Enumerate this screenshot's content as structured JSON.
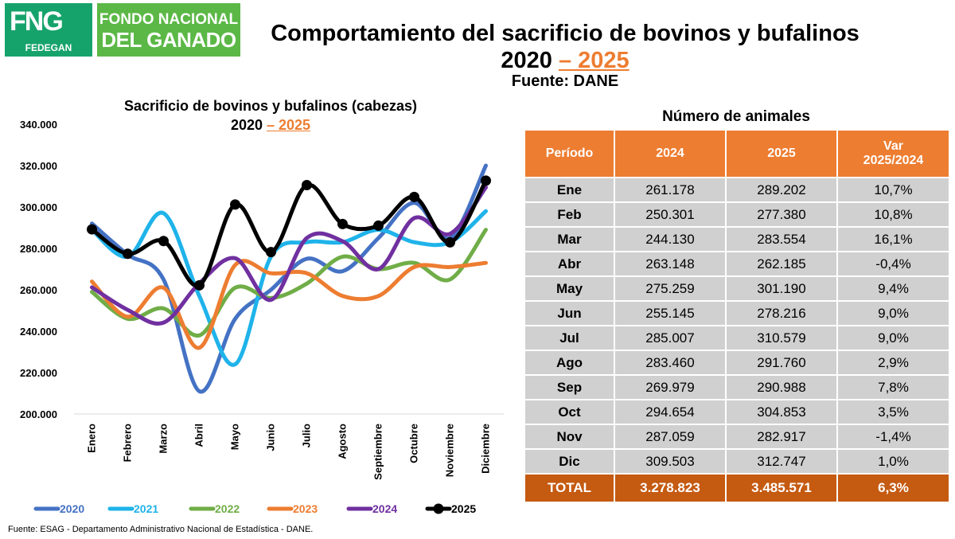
{
  "header": {
    "logo_fng": "FNG",
    "logo_fedegan": "FEDEGAN",
    "logo_line1": "FONDO NACIONAL",
    "logo_line2": "DEL GANADO",
    "title": "Comportamiento del sacrificio de bovinos y bufalinos",
    "years_black": "2020 ",
    "years_orange": "– 2025",
    "source": "Fuente: DANE"
  },
  "chart_data": {
    "type": "line",
    "title_line1": "Sacrificio de bovinos y bufalinos (cabezas)",
    "title_years_black": "2020 ",
    "title_years_orange": "– 2025",
    "categories": [
      "Enero",
      "Febrero",
      "Marzo",
      "Abril",
      "Mayo",
      "Junio",
      "Julio",
      "Agosto",
      "Septiembre",
      "Octubre",
      "Noviembre",
      "Diciembre"
    ],
    "ylim": [
      200000,
      340000
    ],
    "yticks": [
      "200.000",
      "220.000",
      "240.000",
      "260.000",
      "280.000",
      "300.000",
      "320.000",
      "340.000"
    ],
    "series": [
      {
        "name": "2020",
        "color": "#4472c4",
        "values": [
          292000,
          277000,
          265000,
          211000,
          246000,
          260000,
          275000,
          269000,
          285000,
          302000,
          285000,
          320000
        ]
      },
      {
        "name": "2021",
        "color": "#1fb3ea",
        "values": [
          289000,
          276000,
          297000,
          257000,
          224000,
          276000,
          283000,
          283000,
          289000,
          283000,
          283000,
          298000
        ]
      },
      {
        "name": "2022",
        "color": "#70ad47",
        "values": [
          259000,
          246000,
          251000,
          238000,
          261000,
          256000,
          263000,
          276000,
          270000,
          273000,
          265000,
          289000
        ]
      },
      {
        "name": "2023",
        "color": "#ed7d31",
        "values": [
          264000,
          247000,
          261000,
          232000,
          272000,
          268000,
          268000,
          257000,
          257000,
          271000,
          271000,
          273000
        ]
      },
      {
        "name": "2024",
        "color": "#7030a0",
        "values": [
          261178,
          250301,
          244130,
          263148,
          275259,
          255145,
          285007,
          283460,
          269979,
          294654,
          287059,
          309503
        ]
      },
      {
        "name": "2025",
        "color": "#000000",
        "values": [
          289202,
          277380,
          283554,
          262185,
          301190,
          278216,
          310579,
          291760,
          290988,
          304853,
          282917,
          312747
        ]
      }
    ]
  },
  "table": {
    "caption": "Número de animales",
    "headers": [
      "Período",
      "2024",
      "2025",
      "Var 2025/2024"
    ],
    "rows": [
      [
        "Ene",
        "261.178",
        "289.202",
        "10,7%"
      ],
      [
        "Feb",
        "250.301",
        "277.380",
        "10,8%"
      ],
      [
        "Mar",
        "244.130",
        "283.554",
        "16,1%"
      ],
      [
        "Abr",
        "263.148",
        "262.185",
        "-0,4%"
      ],
      [
        "May",
        "275.259",
        "301.190",
        "9,4%"
      ],
      [
        "Jun",
        "255.145",
        "278.216",
        "9,0%"
      ],
      [
        "Jul",
        "285.007",
        "310.579",
        "9,0%"
      ],
      [
        "Ago",
        "283.460",
        "291.760",
        "2,9%"
      ],
      [
        "Sep",
        "269.979",
        "290.988",
        "7,8%"
      ],
      [
        "Oct",
        "294.654",
        "304.853",
        "3,5%"
      ],
      [
        "Nov",
        "287.059",
        "282.917",
        "-1,4%"
      ],
      [
        "Dic",
        "309.503",
        "312.747",
        "1,0%"
      ]
    ],
    "total": [
      "TOTAL",
      "3.278.823",
      "3.485.571",
      "6,3%"
    ]
  },
  "footnote": "Fuente: ESAG - Departamento Administrativo Nacional de Estadística - DANE."
}
